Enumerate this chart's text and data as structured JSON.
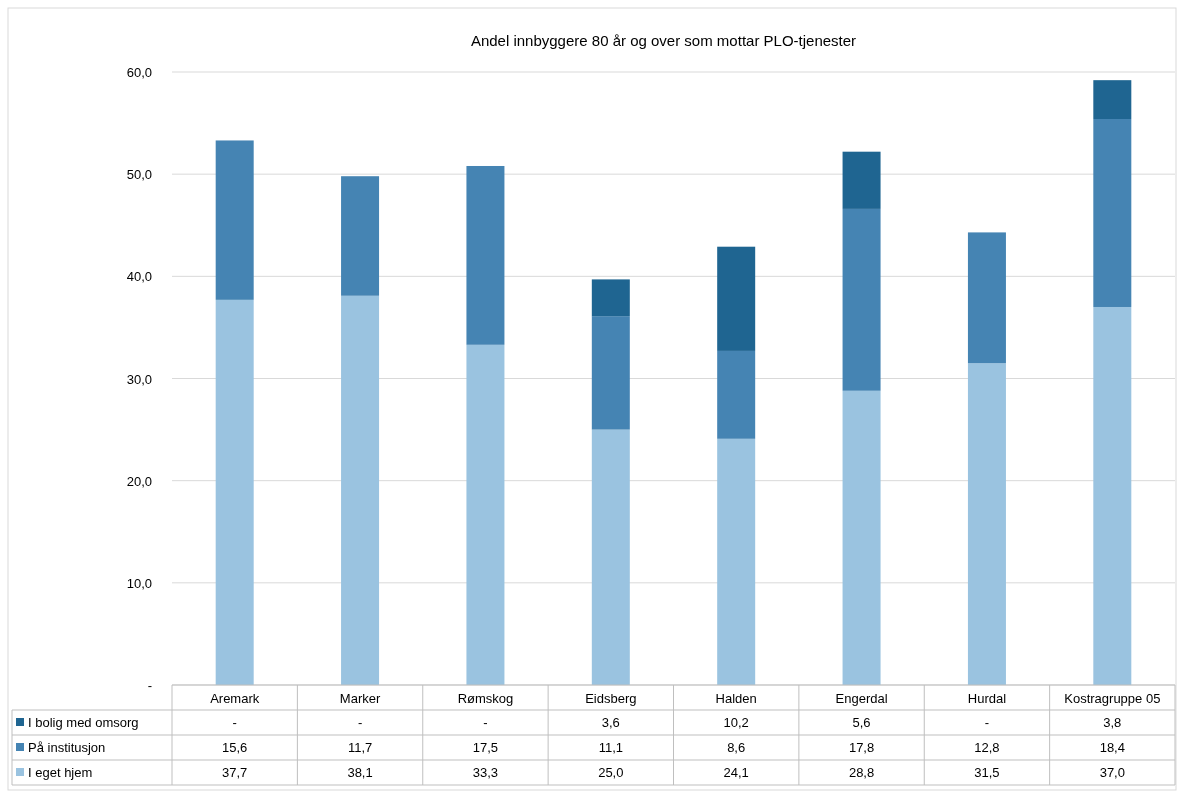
{
  "chart_data": {
    "type": "bar",
    "stacked": true,
    "title": "Andel innbyggere 80 år og over som mottar PLO-tjenester",
    "categories": [
      "Aremark",
      "Marker",
      "Rømskog",
      "Eidsberg",
      "Halden",
      "Engerdal",
      "Hurdal",
      "Kostragruppe 05"
    ],
    "series": [
      {
        "name": "I eget hjem",
        "color": "#9ac3e0",
        "values": [
          37.7,
          38.1,
          33.3,
          25.0,
          24.1,
          28.8,
          31.5,
          37.0
        ],
        "value_labels": [
          "37,7",
          "38,1",
          "33,3",
          "25,0",
          "24,1",
          "28,8",
          "31,5",
          "37,0"
        ]
      },
      {
        "name": "På institusjon",
        "color": "#4584b3",
        "values": [
          15.6,
          11.7,
          17.5,
          11.1,
          8.6,
          17.8,
          12.8,
          18.4
        ],
        "value_labels": [
          "15,6",
          "11,7",
          "17,5",
          "11,1",
          "8,6",
          "17,8",
          "12,8",
          "18,4"
        ]
      },
      {
        "name": "I bolig med omsorg",
        "color": "#1f6591",
        "values": [
          null,
          null,
          null,
          3.6,
          10.2,
          5.6,
          null,
          3.8
        ],
        "value_labels": [
          "-",
          "-",
          "-",
          "3,6",
          "10,2",
          "5,6",
          "-",
          "3,8"
        ]
      }
    ],
    "ylim": [
      0,
      60
    ],
    "yticks": [
      {
        "value": 0,
        "label": "-"
      },
      {
        "value": 10,
        "label": "10,0"
      },
      {
        "value": 20,
        "label": "20,0"
      },
      {
        "value": 30,
        "label": "30,0"
      },
      {
        "value": 40,
        "label": "40,0"
      },
      {
        "value": 50,
        "label": "50,0"
      },
      {
        "value": 60,
        "label": "60,0"
      }
    ],
    "grid": "y",
    "legend": "bottom left"
  }
}
